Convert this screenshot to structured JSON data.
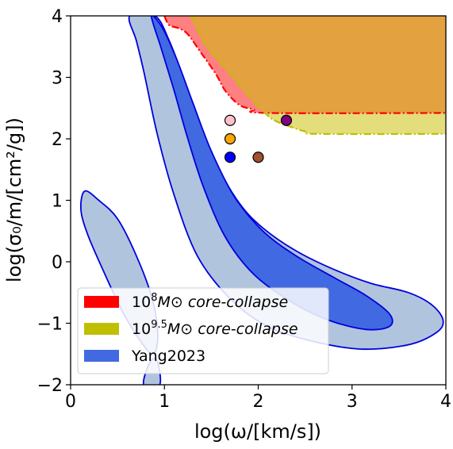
{
  "chart_data": {
    "type": "contour",
    "xlim": [
      0,
      4
    ],
    "ylim": [
      -2,
      4
    ],
    "x_ticks": [
      0,
      1,
      2,
      3,
      4
    ],
    "y_ticks": [
      -2,
      -1,
      0,
      1,
      2,
      3,
      4
    ],
    "x_tick_labels": [
      "0",
      "1",
      "2",
      "3",
      "4"
    ],
    "y_tick_labels": [
      "−2",
      "−1",
      "0",
      "1",
      "2",
      "3",
      "4"
    ],
    "xlabel": "log(ω/[km/s])",
    "ylabel": "log(σ₀/m/[cm²/g])",
    "grid": false,
    "legend_position": "lower-left",
    "legend": [
      {
        "base": "10",
        "sup": "8",
        "tail": "M⊙ core-collapse",
        "color": "#ff0000"
      },
      {
        "base": "10",
        "sup": "9.5",
        "tail": "M⊙ core-collapse",
        "color": "#bfbf00"
      },
      {
        "base": "",
        "sup": "",
        "tail": "Yang2023",
        "color": "#4169e1"
      }
    ],
    "regions": [
      {
        "name": "10^8 M⊙ core-collapse",
        "fill": "#ff8080",
        "edge": "#ff0000",
        "boundary": [
          [
            1.0,
            4.0
          ],
          [
            1.05,
            3.85
          ],
          [
            1.15,
            3.8
          ],
          [
            1.25,
            3.7
          ],
          [
            1.4,
            3.38
          ],
          [
            1.55,
            3.05
          ],
          [
            1.65,
            2.78
          ],
          [
            1.8,
            2.55
          ],
          [
            1.95,
            2.48
          ],
          [
            2.1,
            2.42
          ],
          [
            4.0,
            2.42
          ]
        ]
      },
      {
        "name": "10^9.5 M⊙ core-collapse",
        "fill": "#e3dd7c",
        "edge": "#bfbf00",
        "boundary": [
          [
            1.28,
            4.0
          ],
          [
            1.45,
            3.5
          ],
          [
            1.7,
            3.05
          ],
          [
            1.95,
            2.6
          ],
          [
            2.05,
            2.45
          ],
          [
            2.15,
            2.32
          ],
          [
            2.3,
            2.22
          ],
          [
            2.5,
            2.12
          ],
          [
            2.65,
            2.08
          ],
          [
            4.0,
            2.08
          ]
        ]
      },
      {
        "name": "overlap",
        "fill": "#e3a13f"
      }
    ],
    "contours": [
      {
        "name": "Yang2023 outer main",
        "fill": "#b0c4de",
        "edge": "#0000dd",
        "points": [
          [
            0.63,
            4.0
          ],
          [
            0.9,
            4.0
          ],
          [
            1.05,
            3.6
          ],
          [
            1.2,
            3.0
          ],
          [
            1.35,
            2.35
          ],
          [
            1.55,
            1.6
          ],
          [
            1.8,
            0.95
          ],
          [
            2.05,
            0.55
          ],
          [
            2.4,
            0.18
          ],
          [
            2.8,
            -0.12
          ],
          [
            3.2,
            -0.35
          ],
          [
            3.6,
            -0.5
          ],
          [
            3.85,
            -0.7
          ],
          [
            3.97,
            -0.95
          ],
          [
            3.9,
            -1.15
          ],
          [
            3.6,
            -1.35
          ],
          [
            3.1,
            -1.42
          ],
          [
            2.6,
            -1.3
          ],
          [
            2.1,
            -1.05
          ],
          [
            1.7,
            -0.6
          ],
          [
            1.35,
            0.1
          ],
          [
            1.1,
            1.1
          ],
          [
            0.92,
            2.1
          ],
          [
            0.78,
            3.1
          ],
          [
            0.7,
            3.6
          ]
        ]
      },
      {
        "name": "Yang2023 inner main",
        "fill": "#4169e1",
        "edge": "#0000dd",
        "points": [
          [
            0.86,
            4.0
          ],
          [
            0.98,
            3.8
          ],
          [
            1.13,
            3.3
          ],
          [
            1.3,
            2.6
          ],
          [
            1.5,
            1.8
          ],
          [
            1.75,
            1.05
          ],
          [
            2.05,
            0.5
          ],
          [
            2.4,
            0.1
          ],
          [
            2.8,
            -0.25
          ],
          [
            3.15,
            -0.55
          ],
          [
            3.4,
            -0.85
          ],
          [
            3.4,
            -1.05
          ],
          [
            3.15,
            -1.1
          ],
          [
            2.75,
            -0.95
          ],
          [
            2.35,
            -0.65
          ],
          [
            1.95,
            -0.2
          ],
          [
            1.65,
            0.4
          ],
          [
            1.42,
            1.2
          ],
          [
            1.25,
            2.0
          ],
          [
            1.1,
            2.8
          ],
          [
            0.97,
            3.45
          ]
        ]
      },
      {
        "name": "Yang2023 outer lower",
        "fill": "#b0c4de",
        "edge": "#0000dd",
        "points": [
          [
            0.15,
            1.15
          ],
          [
            0.3,
            1.0
          ],
          [
            0.5,
            0.7
          ],
          [
            0.7,
            0.1
          ],
          [
            0.87,
            -0.6
          ],
          [
            0.93,
            -1.2
          ],
          [
            0.88,
            -1.5
          ],
          [
            0.75,
            -1.3
          ],
          [
            0.55,
            -0.8
          ],
          [
            0.35,
            -0.15
          ],
          [
            0.18,
            0.45
          ],
          [
            0.11,
            0.85
          ]
        ]
      },
      {
        "name": "Yang2023 outer lower tail",
        "fill": "#b0c4de",
        "edge": "#0000dd",
        "points": [
          [
            0.78,
            -2.0
          ],
          [
            0.95,
            -2.0
          ],
          [
            0.92,
            -1.6
          ],
          [
            0.84,
            -1.65
          ]
        ]
      }
    ],
    "points": [
      {
        "x": 1.7,
        "y": 2.3,
        "color": "#ffc0cb"
      },
      {
        "x": 1.7,
        "y": 2.0,
        "color": "#ffa500"
      },
      {
        "x": 1.7,
        "y": 1.7,
        "color": "#0000ff"
      },
      {
        "x": 2.0,
        "y": 1.7,
        "color": "#a0522d"
      },
      {
        "x": 2.3,
        "y": 2.3,
        "color": "#800080"
      }
    ]
  }
}
